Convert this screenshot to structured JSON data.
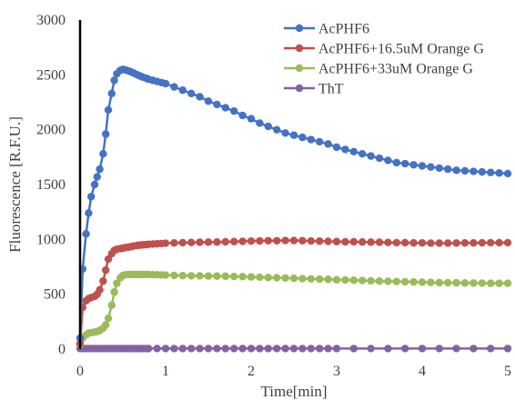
{
  "chart_data": {
    "type": "line",
    "title": "",
    "xlabel": "Time[min]",
    "ylabel": "Fluorescence [R.F.U.]",
    "xlim": [
      0,
      5
    ],
    "ylim": [
      0,
      3000
    ],
    "x_ticks": [
      0,
      1,
      2,
      3,
      4,
      5
    ],
    "y_ticks": [
      0,
      500,
      1000,
      1500,
      2000,
      2500,
      3000
    ],
    "grid": false,
    "legend_position": "top-right",
    "series": [
      {
        "name": "AcPHF6",
        "color": "#4472C4",
        "x": [
          0,
          0.03,
          0.07,
          0.1,
          0.13,
          0.17,
          0.2,
          0.23,
          0.27,
          0.3,
          0.33,
          0.37,
          0.4,
          0.43,
          0.47,
          0.5,
          0.53,
          0.57,
          0.6,
          0.63,
          0.67,
          0.7,
          0.73,
          0.77,
          0.8,
          0.85,
          0.9,
          0.95,
          1.0,
          1.1,
          1.2,
          1.3,
          1.4,
          1.5,
          1.6,
          1.7,
          1.8,
          1.9,
          2.0,
          2.1,
          2.2,
          2.3,
          2.4,
          2.5,
          2.6,
          2.7,
          2.8,
          2.9,
          3.0,
          3.1,
          3.2,
          3.3,
          3.4,
          3.5,
          3.6,
          3.7,
          3.8,
          3.9,
          4.0,
          4.1,
          4.2,
          4.3,
          4.4,
          4.5,
          4.6,
          4.7,
          4.8,
          4.9,
          5.0
        ],
        "values": [
          100,
          730,
          1050,
          1240,
          1390,
          1500,
          1570,
          1640,
          1780,
          1960,
          2180,
          2330,
          2450,
          2510,
          2540,
          2550,
          2545,
          2535,
          2525,
          2515,
          2500,
          2490,
          2480,
          2470,
          2460,
          2450,
          2440,
          2430,
          2420,
          2390,
          2360,
          2330,
          2300,
          2260,
          2230,
          2200,
          2170,
          2130,
          2100,
          2060,
          2030,
          2000,
          1970,
          1950,
          1930,
          1910,
          1890,
          1870,
          1840,
          1820,
          1800,
          1780,
          1760,
          1740,
          1720,
          1700,
          1690,
          1680,
          1670,
          1660,
          1650,
          1640,
          1630,
          1625,
          1620,
          1615,
          1610,
          1605,
          1600
        ]
      },
      {
        "name": "AcPHF6+16.5uM Orange G",
        "color": "#C0504D",
        "x": [
          0,
          0.03,
          0.07,
          0.1,
          0.13,
          0.17,
          0.2,
          0.23,
          0.27,
          0.3,
          0.33,
          0.37,
          0.4,
          0.43,
          0.47,
          0.5,
          0.53,
          0.57,
          0.6,
          0.63,
          0.67,
          0.7,
          0.73,
          0.77,
          0.8,
          0.85,
          0.9,
          0.95,
          1.0,
          1.1,
          1.2,
          1.3,
          1.4,
          1.5,
          1.6,
          1.7,
          1.8,
          1.9,
          2.0,
          2.1,
          2.2,
          2.3,
          2.4,
          2.5,
          2.6,
          2.7,
          2.8,
          2.9,
          3.0,
          3.1,
          3.2,
          3.3,
          3.4,
          3.5,
          3.6,
          3.7,
          3.8,
          3.9,
          4.0,
          4.1,
          4.2,
          4.3,
          4.4,
          4.5,
          4.6,
          4.7,
          4.8,
          4.9,
          5.0
        ],
        "values": [
          50,
          380,
          440,
          460,
          470,
          480,
          500,
          540,
          620,
          720,
          820,
          870,
          900,
          910,
          915,
          920,
          925,
          930,
          935,
          940,
          945,
          948,
          950,
          952,
          955,
          958,
          960,
          962,
          965,
          968,
          970,
          972,
          974,
          975,
          976,
          978,
          980,
          982,
          985,
          986,
          988,
          988,
          990,
          990,
          988,
          986,
          984,
          982,
          980,
          978,
          978,
          976,
          975,
          974,
          972,
          970,
          970,
          968,
          968,
          966,
          966,
          966,
          967,
          968,
          968,
          969,
          970,
          970,
          970
        ]
      },
      {
        "name": "AcPHF6+33uM Orange G",
        "color": "#9BBB59",
        "x": [
          0,
          0.03,
          0.07,
          0.1,
          0.13,
          0.17,
          0.2,
          0.23,
          0.27,
          0.3,
          0.33,
          0.37,
          0.4,
          0.43,
          0.47,
          0.5,
          0.53,
          0.57,
          0.6,
          0.63,
          0.67,
          0.7,
          0.73,
          0.77,
          0.8,
          0.85,
          0.9,
          0.95,
          1.0,
          1.1,
          1.2,
          1.3,
          1.4,
          1.5,
          1.6,
          1.7,
          1.8,
          1.9,
          2.0,
          2.1,
          2.2,
          2.3,
          2.4,
          2.5,
          2.6,
          2.7,
          2.8,
          2.9,
          3.0,
          3.1,
          3.2,
          3.3,
          3.4,
          3.5,
          3.6,
          3.7,
          3.8,
          3.9,
          4.0,
          4.1,
          4.2,
          4.3,
          4.4,
          4.5,
          4.6,
          4.7,
          4.8,
          4.9,
          5.0
        ],
        "values": [
          40,
          100,
          130,
          145,
          150,
          155,
          160,
          170,
          190,
          220,
          280,
          400,
          520,
          600,
          650,
          670,
          678,
          680,
          680,
          680,
          680,
          680,
          680,
          680,
          680,
          678,
          678,
          676,
          675,
          672,
          670,
          668,
          668,
          666,
          665,
          664,
          662,
          660,
          658,
          655,
          652,
          650,
          648,
          645,
          642,
          640,
          638,
          636,
          632,
          630,
          628,
          625,
          622,
          620,
          618,
          616,
          614,
          612,
          610,
          608,
          606,
          605,
          604,
          603,
          602,
          601,
          600,
          600,
          600
        ]
      },
      {
        "name": "ThT",
        "color": "#8064A2",
        "x": [
          0,
          0.03,
          0.07,
          0.1,
          0.13,
          0.17,
          0.2,
          0.23,
          0.27,
          0.3,
          0.33,
          0.37,
          0.4,
          0.43,
          0.47,
          0.5,
          0.53,
          0.57,
          0.6,
          0.63,
          0.67,
          0.7,
          0.73,
          0.77,
          0.8,
          0.9,
          1.0,
          1.1,
          1.2,
          1.3,
          1.4,
          1.5,
          1.6,
          1.7,
          1.8,
          1.9,
          2.0,
          2.1,
          2.2,
          2.3,
          2.4,
          2.5,
          2.6,
          2.7,
          2.8,
          2.9,
          3.0,
          3.2,
          3.4,
          3.6,
          3.8,
          4.0,
          4.2,
          4.4,
          4.6,
          4.8,
          5.0
        ],
        "values": [
          5,
          5,
          5,
          5,
          5,
          5,
          5,
          5,
          5,
          5,
          5,
          5,
          5,
          5,
          5,
          5,
          5,
          5,
          5,
          5,
          5,
          5,
          5,
          5,
          5,
          5,
          5,
          5,
          5,
          5,
          5,
          5,
          5,
          5,
          5,
          5,
          5,
          5,
          5,
          5,
          5,
          5,
          5,
          5,
          5,
          5,
          5,
          5,
          5,
          5,
          5,
          5,
          5,
          5,
          5,
          5,
          5
        ]
      }
    ]
  }
}
